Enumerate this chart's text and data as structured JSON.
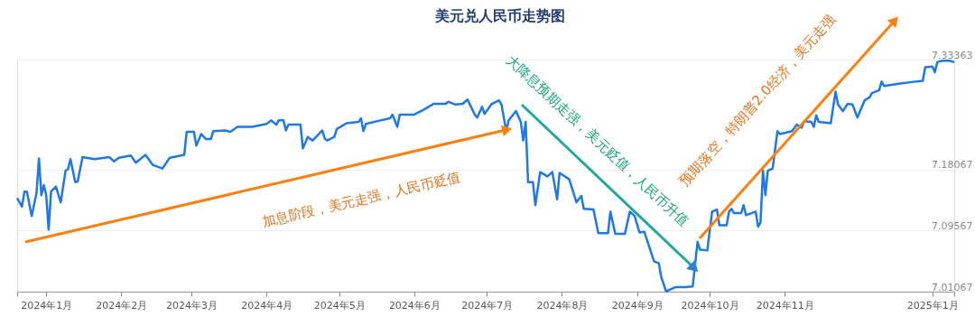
{
  "chart_data": {
    "type": "line",
    "title": "美元兑人民币走势图",
    "x": [
      "2023-12-20",
      "2023-12-22",
      "2023-12-23",
      "2023-12-24",
      "2023-12-26",
      "2023-12-28",
      "2023-12-29",
      "2023-12-30",
      "2023-12-31",
      "2024-01-01",
      "2024-01-02",
      "2024-01-03",
      "2024-01-05",
      "2024-01-07",
      "2024-01-09",
      "2024-01-10",
      "2024-01-11",
      "2024-01-13",
      "2024-01-14",
      "2024-01-16",
      "2024-01-21",
      "2024-01-27",
      "2024-01-29",
      "2024-01-31",
      "2024-02-05",
      "2024-02-07",
      "2024-02-11",
      "2024-02-14",
      "2024-02-18",
      "2024-02-21",
      "2024-02-27",
      "2024-02-28",
      "2024-03-02",
      "2024-03-03",
      "2024-03-05",
      "2024-03-07",
      "2024-03-09",
      "2024-03-10",
      "2024-03-15",
      "2024-03-17",
      "2024-03-20",
      "2024-03-26",
      "2024-04-01",
      "2024-04-03",
      "2024-04-05",
      "2024-04-06",
      "2024-04-08",
      "2024-04-09",
      "2024-04-10",
      "2024-04-15",
      "2024-04-16",
      "2024-04-18",
      "2024-04-20",
      "2024-04-22",
      "2024-04-24",
      "2024-04-25",
      "2024-04-26",
      "2024-04-29",
      "2024-04-30",
      "2024-05-04",
      "2024-05-09",
      "2024-05-10",
      "2024-05-11",
      "2024-05-12",
      "2024-05-18",
      "2024-05-22",
      "2024-05-23",
      "2024-05-25",
      "2024-05-26",
      "2024-06-01",
      "2024-06-05",
      "2024-06-09",
      "2024-06-14",
      "2024-06-15",
      "2024-06-18",
      "2024-06-21",
      "2024-06-23",
      "2024-06-24",
      "2024-06-26",
      "2024-06-27",
      "2024-06-29",
      "2024-06-30",
      "2024-07-03",
      "2024-07-06",
      "2024-07-07",
      "2024-07-09",
      "2024-07-10",
      "2024-07-13",
      "2024-07-15",
      "2024-07-16",
      "2024-07-17",
      "2024-07-18",
      "2024-07-20",
      "2024-07-21",
      "2024-07-23",
      "2024-07-26",
      "2024-07-28",
      "2024-07-30",
      "2024-07-31",
      "2024-08-04",
      "2024-08-07",
      "2024-08-09",
      "2024-08-10",
      "2024-08-14",
      "2024-08-16",
      "2024-08-20",
      "2024-08-21",
      "2024-08-23",
      "2024-08-27",
      "2024-08-29",
      "2024-08-31",
      "2024-09-02",
      "2024-09-04",
      "2024-09-08",
      "2024-09-10",
      "2024-09-11",
      "2024-09-13",
      "2024-09-17",
      "2024-09-21",
      "2024-09-24",
      "2024-09-26",
      "2024-09-27",
      "2024-09-30",
      "2024-10-02",
      "2024-10-04",
      "2024-10-05",
      "2024-10-08",
      "2024-10-09",
      "2024-10-10",
      "2024-10-11",
      "2024-10-14",
      "2024-10-15",
      "2024-10-16",
      "2024-10-20",
      "2024-10-21",
      "2024-10-22",
      "2024-10-23",
      "2024-10-24",
      "2024-10-25",
      "2024-10-27",
      "2024-10-29",
      "2024-10-30",
      "2024-11-04",
      "2024-11-06",
      "2024-11-08",
      "2024-11-09",
      "2024-11-12",
      "2024-11-13",
      "2024-11-14",
      "2024-11-15",
      "2024-11-20",
      "2024-11-22",
      "2024-11-23",
      "2024-11-25",
      "2024-11-27",
      "2024-11-29",
      "2024-12-01",
      "2024-12-04",
      "2024-12-06",
      "2024-12-07",
      "2024-12-10",
      "2024-12-11",
      "2024-12-12",
      "2024-12-18",
      "2024-12-25",
      "2024-12-28",
      "2024-12-29",
      "2025-01-01",
      "2025-01-02",
      "2025-01-03",
      "2025-01-05",
      "2025-01-08",
      "2025-01-10"
    ],
    "series": [
      {
        "color": "#1e78e6",
        "values": [
          7.141,
          7.129,
          7.15,
          7.15,
          7.116,
          7.148,
          7.196,
          7.145,
          7.159,
          7.145,
          7.097,
          7.15,
          7.157,
          7.135,
          7.179,
          7.181,
          7.195,
          7.163,
          7.164,
          7.198,
          7.195,
          7.198,
          7.192,
          7.197,
          7.2,
          7.19,
          7.201,
          7.187,
          7.182,
          7.197,
          7.201,
          7.233,
          7.233,
          7.214,
          7.23,
          7.223,
          7.223,
          7.234,
          7.235,
          7.233,
          7.24,
          7.24,
          7.244,
          7.249,
          7.243,
          7.249,
          7.249,
          7.235,
          7.243,
          7.243,
          7.21,
          7.226,
          7.221,
          7.228,
          7.235,
          7.224,
          7.221,
          7.226,
          7.237,
          7.245,
          7.247,
          7.252,
          7.234,
          7.244,
          7.249,
          7.252,
          7.257,
          7.24,
          7.257,
          7.257,
          7.264,
          7.272,
          7.272,
          7.275,
          7.271,
          7.272,
          7.278,
          7.271,
          7.257,
          7.253,
          7.268,
          7.258,
          7.272,
          7.277,
          7.271,
          7.234,
          7.249,
          7.262,
          7.247,
          7.221,
          7.247,
          7.163,
          7.163,
          7.131,
          7.177,
          7.171,
          7.177,
          7.139,
          7.176,
          7.167,
          7.135,
          7.144,
          7.126,
          7.125,
          7.092,
          7.092,
          7.122,
          7.091,
          7.091,
          7.122,
          7.116,
          7.093,
          7.094,
          7.053,
          7.05,
          7.031,
          7.011,
          7.017,
          7.017,
          7.018,
          7.08,
          7.069,
          7.068,
          7.122,
          7.125,
          7.103,
          7.103,
          7.122,
          7.126,
          7.12,
          7.12,
          7.131,
          7.117,
          7.122,
          7.101,
          7.107,
          7.179,
          7.145,
          7.179,
          7.182,
          7.234,
          7.23,
          7.234,
          7.243,
          7.239,
          7.248,
          7.247,
          7.24,
          7.256,
          7.247,
          7.245,
          7.289,
          7.271,
          7.262,
          7.272,
          7.271,
          7.253,
          7.277,
          7.281,
          7.287,
          7.291,
          7.303,
          7.297,
          7.3,
          7.303,
          7.304,
          7.323,
          7.324,
          7.316,
          7.33,
          7.332,
          7.332,
          7.33
        ]
      }
    ],
    "xlim": [
      "2023-12-20",
      "2025-01-10"
    ],
    "xticks": [
      {
        "value": "2023-12-20",
        "label": null
      },
      {
        "value": "2024-01-01",
        "label": "2024年1月"
      },
      {
        "value": "2024-02-01",
        "label": "2024年2月"
      },
      {
        "value": "2024-03-01",
        "label": "2024年3月"
      },
      {
        "value": "2024-04-01",
        "label": "2024年4月"
      },
      {
        "value": "2024-05-01",
        "label": "2024年5月"
      },
      {
        "value": "2024-06-01",
        "label": "2024年6月"
      },
      {
        "value": "2024-07-01",
        "label": "2024年7月"
      },
      {
        "value": "2024-08-01",
        "label": "2024年8月"
      },
      {
        "value": "2024-09-01",
        "label": "2024年9月"
      },
      {
        "value": "2024-10-01",
        "label": "2024年10月"
      },
      {
        "value": "2024-11-01",
        "label": "2024年11月"
      },
      {
        "value": "2025-01-01",
        "label": "2025年1月"
      },
      {
        "value": "2025-01-10",
        "label": null
      }
    ],
    "ylim": [
      7.01067,
      7.33363
    ],
    "yticks": [
      7.01067,
      7.09567,
      7.18067,
      7.33363
    ],
    "grid": "y",
    "marker": "none",
    "line_style": "solid",
    "annotations": [
      "加息阶段，美元走强，人民币贬值",
      {
        "text": "大降息预期走强，美元贬值，人民币升值",
        "x": "2024-09-24",
        "y": 7.045
      },
      "预期落空，特朗普2.0经济，美元走强"
    ]
  }
}
